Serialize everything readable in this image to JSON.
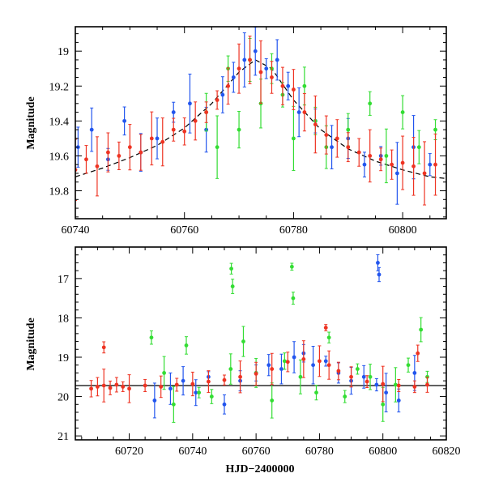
{
  "chart_data": [
    {
      "type": "scatter",
      "panel": "top",
      "title": "",
      "xlabel": "",
      "ylabel": "Magnitude",
      "xlim": [
        60740,
        60808
      ],
      "ylim": [
        19.96,
        18.86
      ],
      "y_inverted": true,
      "x_ticks": [
        60740,
        60760,
        60780,
        60800
      ],
      "y_ticks": [
        19.0,
        19.2,
        19.4,
        19.6,
        19.8
      ],
      "y_tick_labels": [
        "19",
        "19.2",
        "19.4",
        "19.6",
        "19.8"
      ],
      "grid": false,
      "legend": "none",
      "series": [
        {
          "color": "#2255ee",
          "description": "blue filter photometry with error bars",
          "x": [
            60740.5,
            60743,
            60746,
            60749,
            60752,
            60755,
            60758,
            60761,
            60764,
            60767,
            60769,
            60771,
            60773,
            60775,
            60777,
            60779,
            60781,
            60784,
            60787,
            60790,
            60793,
            60796,
            60799,
            60802,
            60805
          ],
          "y": [
            19.55,
            19.45,
            19.62,
            19.4,
            19.58,
            19.5,
            19.35,
            19.3,
            19.45,
            19.25,
            19.15,
            19.05,
            19.0,
            19.1,
            19.05,
            19.2,
            19.35,
            19.4,
            19.55,
            19.5,
            19.65,
            19.6,
            19.7,
            19.55,
            19.65
          ]
        },
        {
          "color": "#33dd33",
          "description": "green filter photometry with error bars",
          "x": [
            60764,
            60766,
            60768,
            60770,
            60772,
            60774,
            60776,
            60778,
            60780,
            60782,
            60784,
            60786,
            60790,
            60794,
            60797,
            60800,
            60803,
            60806
          ],
          "y": [
            19.35,
            19.55,
            19.1,
            19.45,
            19.05,
            19.3,
            19.1,
            19.25,
            19.5,
            19.2,
            19.4,
            19.55,
            19.45,
            19.3,
            19.6,
            19.35,
            19.55,
            19.45
          ]
        },
        {
          "color": "#ee3322",
          "description": "red filter photometry with error bars",
          "x": [
            60740,
            60742,
            60744,
            60746,
            60748,
            60750,
            60752,
            60754,
            60756,
            60758,
            60760,
            60762,
            60764,
            60766,
            60768,
            60770,
            60772,
            60774,
            60776,
            60778,
            60780,
            60782,
            60784,
            60786,
            60788,
            60790,
            60792,
            60794,
            60796,
            60798,
            60800,
            60802,
            60804,
            60806
          ],
          "y": [
            19.68,
            19.62,
            19.66,
            19.58,
            19.6,
            19.55,
            19.58,
            19.5,
            19.52,
            19.45,
            19.46,
            19.4,
            19.35,
            19.28,
            19.2,
            19.1,
            19.05,
            19.12,
            19.15,
            19.2,
            19.22,
            19.35,
            19.42,
            19.48,
            19.5,
            19.55,
            19.58,
            19.6,
            19.62,
            19.65,
            19.64,
            19.66,
            19.7,
            19.65
          ]
        }
      ],
      "model_curve": {
        "style": "dashed",
        "color": "#000000",
        "x": [
          60740,
          60745,
          60750,
          60755,
          60760,
          60765,
          60770,
          60773,
          60776,
          60780,
          60785,
          60790,
          60795,
          60800,
          60805,
          60808
        ],
        "y": [
          19.72,
          19.67,
          19.61,
          19.54,
          19.44,
          19.3,
          19.12,
          19.05,
          19.1,
          19.28,
          19.45,
          19.56,
          19.63,
          19.68,
          19.72,
          19.73
        ]
      }
    },
    {
      "type": "scatter",
      "panel": "bottom",
      "title": "",
      "xlabel": "HJD−2400000",
      "ylabel": "Magnitude",
      "xlim": [
        60703,
        60820
      ],
      "ylim": [
        21.1,
        16.2
      ],
      "y_inverted": true,
      "x_ticks": [
        60720,
        60740,
        60760,
        60780,
        60800,
        60820
      ],
      "y_ticks": [
        17,
        18,
        19,
        20,
        21
      ],
      "grid": false,
      "legend": "none",
      "baseline_magnitude": 19.72,
      "series": [
        {
          "color": "#2255ee",
          "description": "blue filter photometry with error bars",
          "x": [
            60728,
            60733,
            60737,
            60741,
            60745,
            60750,
            60755,
            60760,
            60764,
            60768,
            60772,
            60775,
            60778,
            60782,
            60786,
            60790,
            60794,
            60798,
            60801,
            60805,
            60810
          ],
          "y": [
            20.1,
            19.8,
            19.6,
            19.9,
            19.5,
            20.2,
            19.6,
            19.4,
            19.2,
            19.3,
            19.0,
            18.9,
            19.2,
            19.1,
            19.4,
            19.6,
            19.5,
            19.7,
            19.9,
            20.1,
            19.4
          ],
          "outliers": {
            "x": [
              60798.4,
              60798.8
            ],
            "y": [
              16.6,
              16.9
            ]
          }
        },
        {
          "color": "#33dd33",
          "description": "green filter photometry with error bars",
          "x": [
            60727,
            60731,
            60734,
            60738,
            60742,
            60746,
            60752,
            60756,
            60760,
            60765,
            60769,
            60774,
            60779,
            60783,
            60788,
            60792,
            60796,
            60800,
            60804,
            60808,
            60812,
            60814
          ],
          "y": [
            18.5,
            19.4,
            20.2,
            18.7,
            19.9,
            20.0,
            19.3,
            18.6,
            19.4,
            20.1,
            19.1,
            19.5,
            19.9,
            18.5,
            20.0,
            19.3,
            19.5,
            20.2,
            19.7,
            19.2,
            18.3,
            19.5
          ],
          "outliers": {
            "x": [
              60752.2,
              60752.6,
              60771.3,
              60771.7
            ],
            "y": [
              16.75,
              17.2,
              16.7,
              17.5
            ]
          }
        },
        {
          "color": "#ee3322",
          "description": "red filter photometry with error bars",
          "x": [
            60708,
            60710,
            60712,
            60714,
            60716,
            60718,
            60720,
            60725,
            60730,
            60735,
            60740,
            60745,
            60750,
            60755,
            60760,
            60765,
            60770,
            60775,
            60780,
            60783,
            60786,
            60790,
            60795,
            60800,
            60805,
            60810,
            60814
          ],
          "y": [
            19.8,
            19.75,
            19.72,
            19.78,
            19.7,
            19.75,
            19.8,
            19.72,
            19.75,
            19.7,
            19.68,
            19.62,
            19.58,
            19.5,
            19.42,
            19.3,
            19.12,
            19.05,
            19.1,
            19.2,
            19.35,
            19.5,
            19.62,
            19.68,
            19.72,
            19.75,
            19.7
          ],
          "outliers": {
            "x": [
              60712,
              60782,
              60811
            ],
            "y": [
              18.75,
              18.25,
              18.9
            ]
          }
        }
      ]
    }
  ]
}
